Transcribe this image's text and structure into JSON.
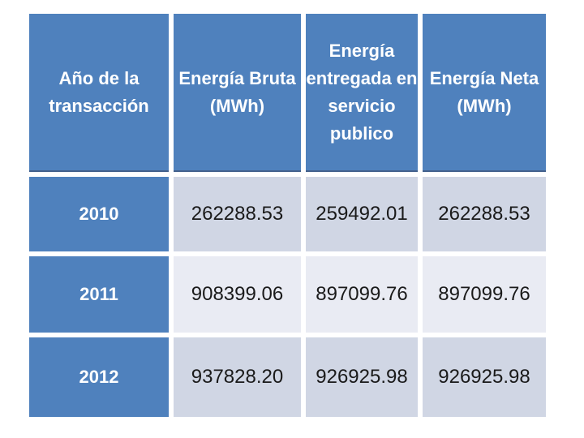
{
  "slide": {
    "background": "#FFFFFF"
  },
  "table": {
    "headers": [
      "Año de la\ntransacción",
      "Energía Bruta\n(MWh)",
      "Energía\nentregada en\nservicio\npublico",
      "Energía Neta\n(MWh)"
    ],
    "rows": [
      {
        "year": "2010",
        "values": [
          "262288.53",
          "259492.01",
          "262288.53"
        ]
      },
      {
        "year": "2011",
        "values": [
          "908399.06",
          "897099.76",
          "897099.76"
        ]
      },
      {
        "year": "2012",
        "values": [
          "937828.20",
          "926925.98",
          "926925.98"
        ]
      }
    ],
    "colors": {
      "header_background": "#4F81BD",
      "header_text": "#FFFFFF",
      "header_border_bottom": "#44618C",
      "band_dark": "#D0D6E4",
      "band_light": "#E9EBF3",
      "value_text": "#1A1A1A"
    }
  },
  "chart_data": {
    "type": "table",
    "title": "",
    "columns": [
      "Año de la transacción",
      "Energía Bruta (MWh)",
      "Energía entregada en servicio publico",
      "Energía Neta (MWh)"
    ],
    "rows": [
      [
        "2010",
        262288.53,
        259492.01,
        262288.53
      ],
      [
        "2011",
        908399.06,
        897099.76,
        897099.76
      ],
      [
        "2012",
        937828.2,
        926925.98,
        926925.98
      ]
    ],
    "layout": "header row blue, year column blue, banded data rows (dark/light), white cell gaps"
  }
}
